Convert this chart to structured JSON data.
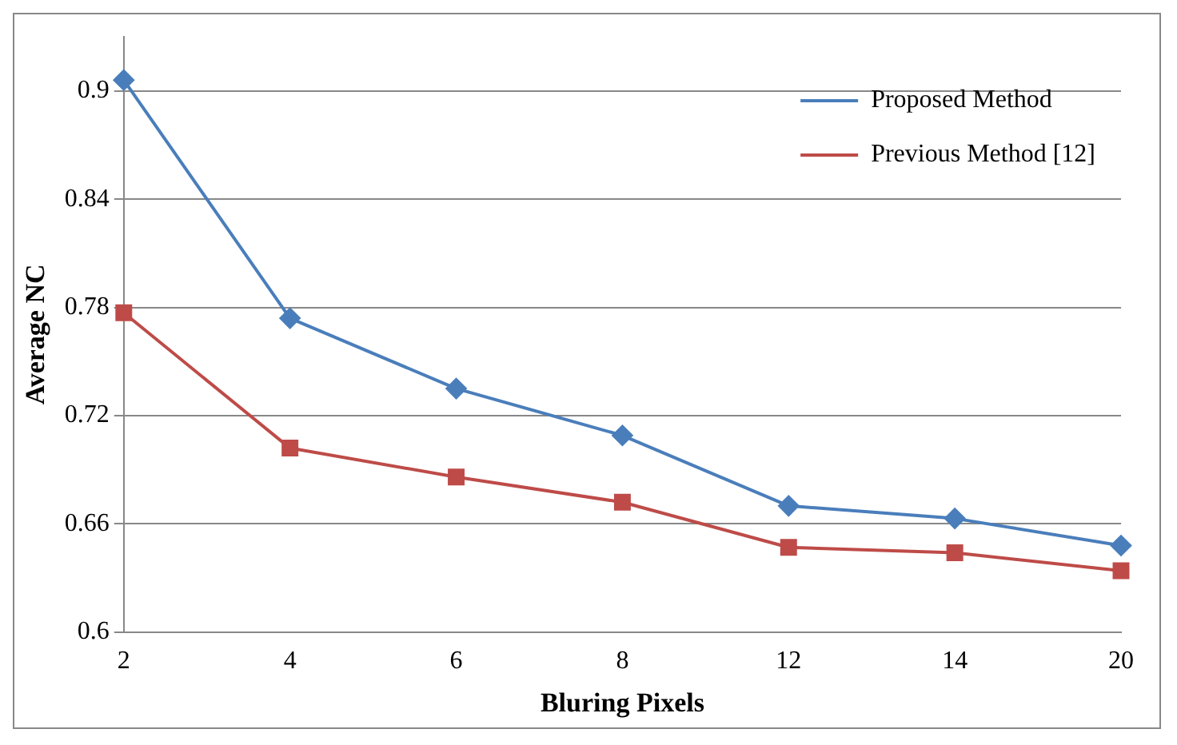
{
  "chart_data": {
    "type": "line",
    "xlabel": "Bluring Pixels",
    "ylabel": "Average NC",
    "categories": [
      "2",
      "4",
      "6",
      "8",
      "12",
      "14",
      "20"
    ],
    "series": [
      {
        "name": "Proposed Method",
        "color": "#4a7ebb",
        "marker": "diamond",
        "values": [
          0.906,
          0.774,
          0.735,
          0.709,
          0.67,
          0.663,
          0.648
        ]
      },
      {
        "name": "Previous Method [12]",
        "color": "#be4b48",
        "marker": "square",
        "values": [
          0.777,
          0.702,
          0.686,
          0.672,
          0.647,
          0.644,
          0.634
        ]
      }
    ],
    "ylim": [
      0.6,
      0.93
    ],
    "yticks": [
      0.6,
      0.66,
      0.72,
      0.78,
      0.84,
      0.9
    ],
    "grid": "y",
    "legend": "top right",
    "line_style": "solid"
  }
}
